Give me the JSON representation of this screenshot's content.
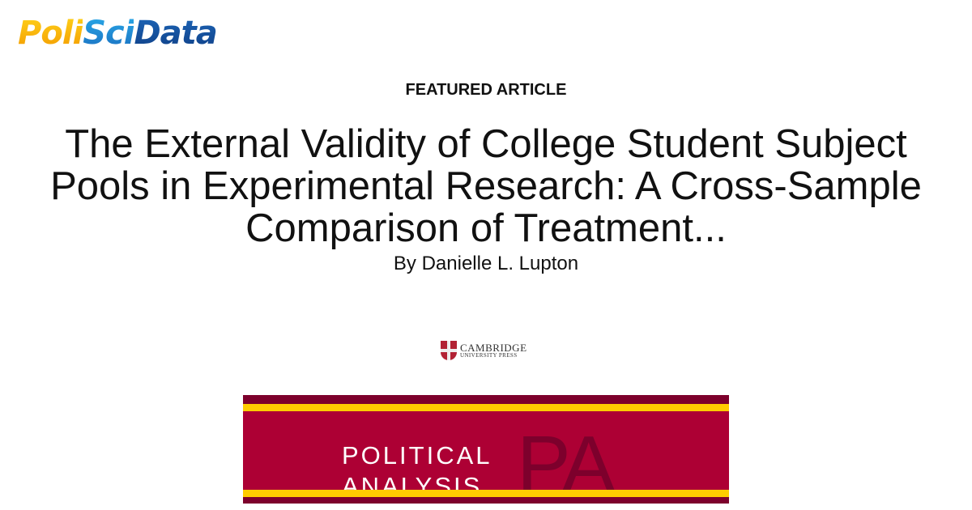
{
  "site": {
    "logo_text": [
      "Poli",
      "Sci",
      "Data"
    ]
  },
  "kicker": "FEATURED ARTICLE",
  "article": {
    "title": "The External Validity of College Student Subject Pools in Experimental Research: A Cross-Sample Comparison of Treatment...",
    "author": "By Danielle L. Lupton"
  },
  "publisher": {
    "line1": "CAMBRIDGE",
    "line2": "UNIVERSITY PRESS"
  },
  "journal": {
    "line1": "POLITICAL",
    "line2": "ANALYSIS",
    "monogram": "PA"
  },
  "colors": {
    "banner_red": "#ad0034",
    "banner_dark": "#7d002c",
    "banner_yellow": "#ffcc00"
  }
}
